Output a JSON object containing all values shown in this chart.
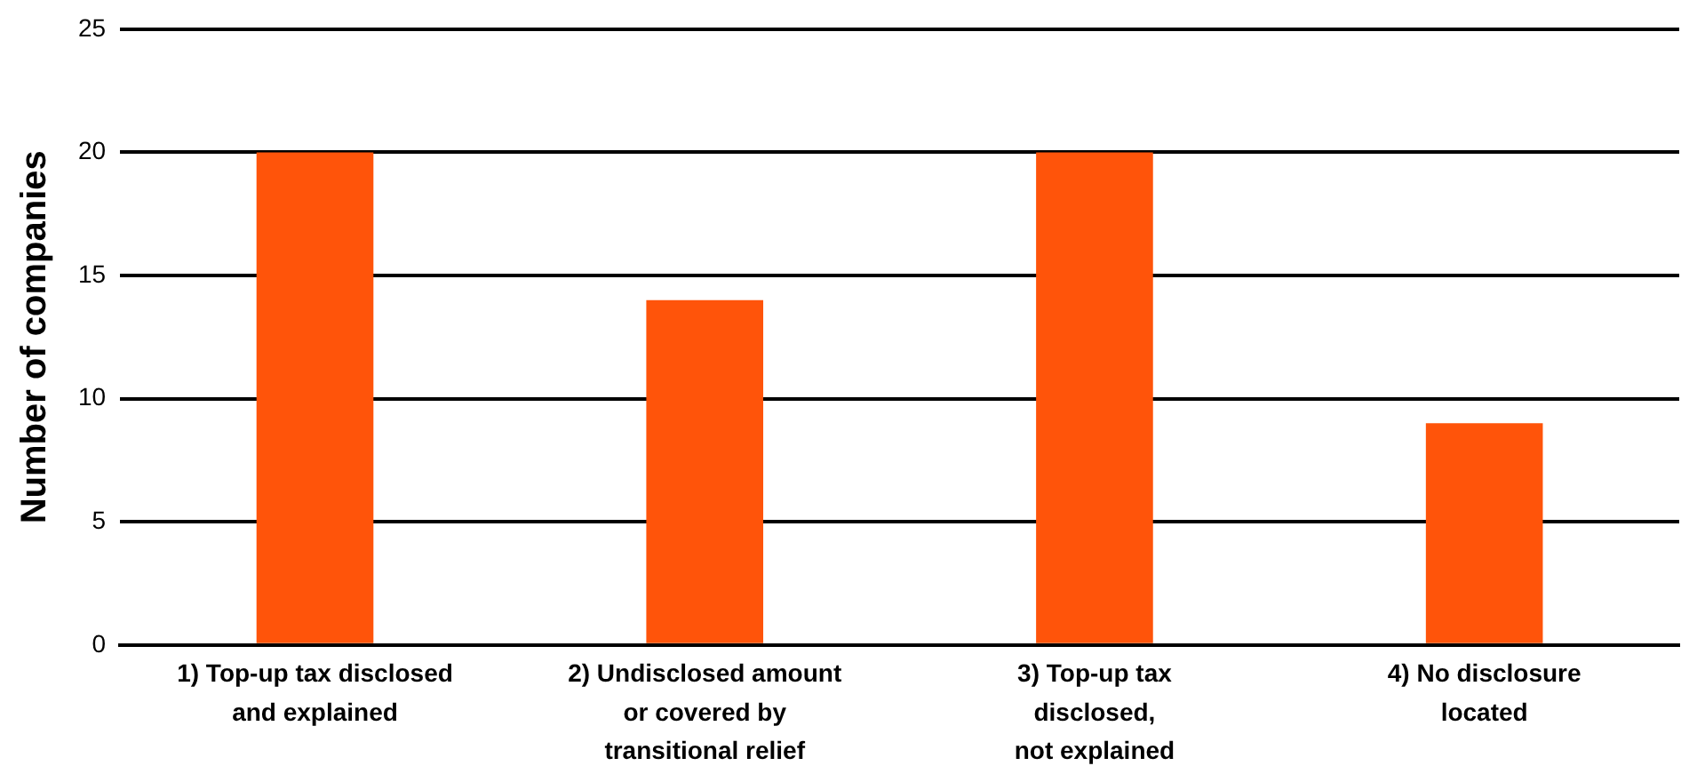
{
  "chart_data": {
    "type": "bar",
    "ylabel": "Number of companies",
    "categories": [
      "1) Top-up tax disclosed\nand explained",
      "2) Undisclosed amount\nor covered by\ntransitional relief",
      "3) Top-up tax\ndisclosed,\nnot explained",
      "4) No disclosure\nlocated"
    ],
    "values": [
      20,
      14,
      20,
      9
    ],
    "color": "#ff540a",
    "ylim": [
      0,
      25
    ],
    "yticks": [
      0,
      5,
      10,
      15,
      20,
      25
    ],
    "grid": "y",
    "legend": false
  }
}
